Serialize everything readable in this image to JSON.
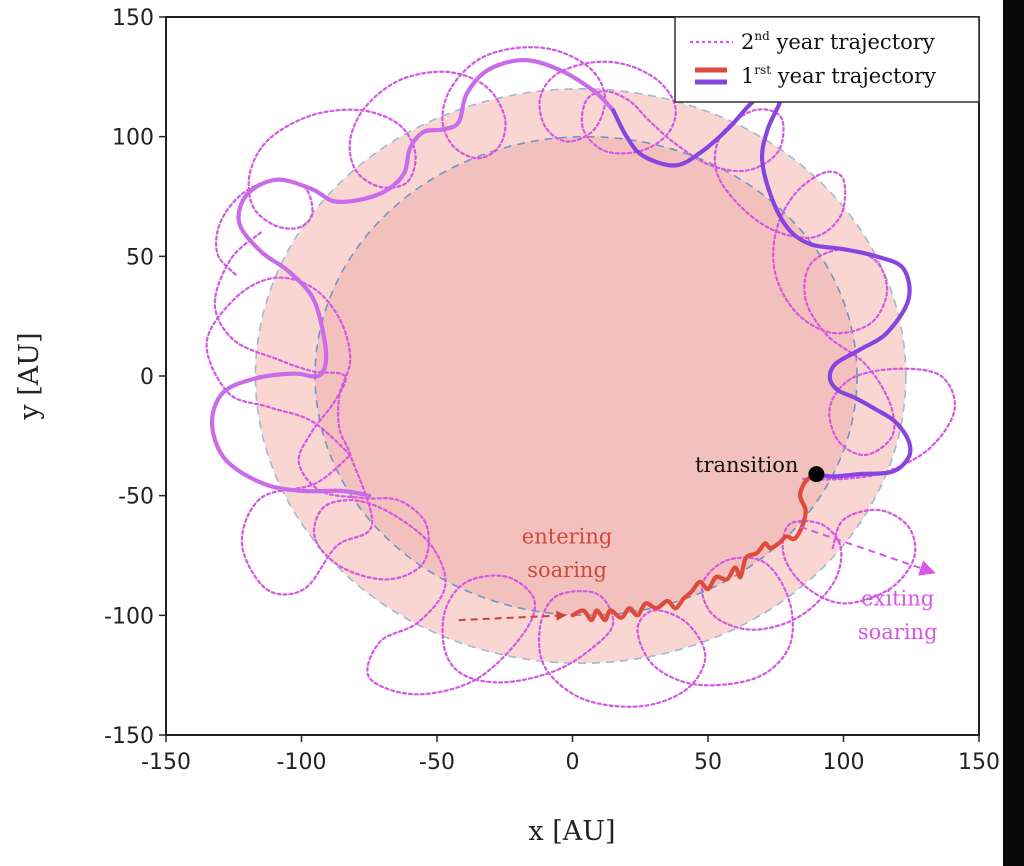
{
  "chart_data": {
    "type": "line",
    "xlabel": "x [AU]",
    "ylabel": "y [AU]",
    "xlim": [
      -150,
      150
    ],
    "ylim": [
      -150,
      150
    ],
    "x_ticks": [
      -150,
      -100,
      -50,
      0,
      50,
      100,
      150
    ],
    "y_ticks": [
      150,
      100,
      50,
      0,
      -50,
      -100,
      -150
    ],
    "x_tick_labels": [
      "-150",
      "-100",
      "-50",
      "0",
      "50",
      "100",
      "150"
    ],
    "y_tick_labels": [
      "150",
      "100",
      "50",
      "0",
      "-50",
      "-100",
      "-150"
    ],
    "grid": false,
    "legend_position": "top-right",
    "legend": {
      "entry2_prefix": "2",
      "entry2_sup": "nd",
      "entry2_text": " year trajectory",
      "entry1_prefix": "1",
      "entry1_sup": "rst",
      "entry1_text": " year trajectory"
    },
    "regions": [
      {
        "shape": "circle",
        "center": [
          3,
          0
        ],
        "radius": 120,
        "fill": "#f9d6d2",
        "edge": "#9dbad6"
      },
      {
        "shape": "circle",
        "center": [
          5,
          0
        ],
        "radius": 100,
        "fill": "#f3c1bd",
        "edge": "#6f96c6"
      }
    ],
    "series": [
      {
        "style": "dotted",
        "color": "#d457e6",
        "points": [
          [
            -82,
            -33
          ],
          [
            -96,
            -19
          ],
          [
            -112,
            -13
          ],
          [
            -127,
            -7
          ],
          [
            -135,
            14
          ],
          [
            -124,
            33
          ],
          [
            -110,
            41
          ],
          [
            -96,
            37
          ],
          [
            -86,
            24
          ],
          [
            -82,
            7
          ],
          [
            -86,
            -8
          ],
          [
            -86,
            -22
          ],
          [
            -82,
            -33
          ],
          [
            -74,
            -62
          ],
          [
            -87,
            -71
          ],
          [
            -99,
            -89
          ],
          [
            -113,
            -89
          ],
          [
            -122,
            -70
          ],
          [
            -115,
            -51
          ],
          [
            -95,
            -45
          ],
          [
            -82,
            -33
          ]
        ]
      },
      {
        "style": "dotted",
        "color": "#d457e6",
        "points": [
          [
            -115,
            60
          ],
          [
            -126,
            49
          ],
          [
            -132,
            30
          ],
          [
            -125,
            15
          ],
          [
            -109,
            7
          ],
          [
            -96,
            2
          ],
          [
            -84,
            0
          ],
          [
            -88,
            -11
          ],
          [
            -96,
            -23
          ],
          [
            -101,
            -36
          ],
          [
            -93,
            -48
          ],
          [
            -77,
            -51
          ],
          [
            -64,
            -52
          ],
          [
            -54,
            -62
          ],
          [
            -55,
            -78
          ],
          [
            -68,
            -85
          ],
          [
            -85,
            -80
          ],
          [
            -95,
            -68
          ],
          [
            -92,
            -55
          ],
          [
            -80,
            -52
          ],
          [
            -66,
            -58
          ],
          [
            -52,
            -71
          ],
          [
            -47,
            -88
          ],
          [
            -57,
            -103
          ],
          [
            -71,
            -111
          ],
          [
            -75,
            -126
          ],
          [
            -58,
            -133
          ],
          [
            -36,
            -127
          ],
          [
            -19,
            -109
          ],
          [
            -14,
            -94
          ],
          [
            -24,
            -84
          ],
          [
            -39,
            -86
          ],
          [
            -47,
            -98
          ],
          [
            -47,
            -115
          ],
          [
            -40,
            -125
          ],
          [
            -25,
            -128
          ],
          [
            -6,
            -123
          ],
          [
            8,
            -113
          ],
          [
            15,
            -103
          ],
          [
            9,
            -91
          ],
          [
            -6,
            -92
          ],
          [
            -12,
            -105
          ],
          [
            -10,
            -122
          ],
          [
            4,
            -135
          ],
          [
            25,
            -138
          ],
          [
            42,
            -131
          ],
          [
            49,
            -117
          ],
          [
            42,
            -103
          ],
          [
            30,
            -98
          ],
          [
            24,
            -106
          ],
          [
            30,
            -121
          ],
          [
            46,
            -129
          ],
          [
            68,
            -126
          ],
          [
            80,
            -113
          ],
          [
            80,
            -94
          ],
          [
            71,
            -78
          ],
          [
            57,
            -77
          ],
          [
            48,
            -87
          ],
          [
            52,
            -100
          ],
          [
            66,
            -106
          ],
          [
            83,
            -101
          ],
          [
            96,
            -87
          ],
          [
            99,
            -72
          ],
          [
            92,
            -62
          ],
          [
            80,
            -62
          ],
          [
            78,
            -75
          ],
          [
            86,
            -88
          ],
          [
            100,
            -95
          ],
          [
            117,
            -89
          ],
          [
            126,
            -76
          ],
          [
            124,
            -63
          ],
          [
            113,
            -56
          ],
          [
            100,
            -60
          ],
          [
            96,
            -72
          ]
        ]
      },
      {
        "style": "dotted",
        "color": "#d457e6",
        "points": [
          [
            85,
            -43
          ],
          [
            100,
            -43
          ],
          [
            116,
            -40
          ],
          [
            132,
            -30
          ],
          [
            141,
            -14
          ],
          [
            136,
            0
          ],
          [
            120,
            3
          ],
          [
            103,
            -1
          ],
          [
            95,
            -13
          ],
          [
            98,
            -27
          ],
          [
            108,
            -33
          ],
          [
            118,
            -25
          ],
          [
            117,
            -11
          ],
          [
            108,
            5
          ],
          [
            94,
            17
          ],
          [
            86,
            32
          ],
          [
            88,
            47
          ],
          [
            100,
            53
          ],
          [
            112,
            48
          ],
          [
            116,
            35
          ],
          [
            110,
            22
          ],
          [
            96,
            18
          ],
          [
            83,
            26
          ],
          [
            75,
            42
          ],
          [
            75,
            60
          ],
          [
            82,
            76
          ],
          [
            93,
            85
          ],
          [
            100,
            82
          ],
          [
            99,
            67
          ],
          [
            89,
            58
          ],
          [
            74,
            61
          ],
          [
            61,
            72
          ],
          [
            53,
            86
          ],
          [
            55,
            101
          ],
          [
            67,
            111
          ],
          [
            77,
            108
          ],
          [
            76,
            94
          ],
          [
            65,
            86
          ],
          [
            51,
            88
          ],
          [
            38,
            97
          ],
          [
            28,
            107
          ],
          [
            21,
            115
          ],
          [
            12,
            119
          ],
          [
            5,
            115
          ],
          [
            4,
            103
          ],
          [
            12,
            94
          ],
          [
            25,
            94
          ],
          [
            35,
            101
          ],
          [
            38,
            112
          ],
          [
            32,
            123
          ],
          [
            20,
            130
          ],
          [
            7,
            131
          ],
          [
            -6,
            126
          ],
          [
            -12,
            116
          ],
          [
            -10,
            104
          ],
          [
            -2,
            98
          ],
          [
            8,
            103
          ],
          [
            12,
            116
          ],
          [
            7,
            128
          ],
          [
            -6,
            136
          ],
          [
            -21,
            137
          ],
          [
            -35,
            132
          ],
          [
            -45,
            120
          ],
          [
            -48,
            107
          ],
          [
            -44,
            96
          ],
          [
            -35,
            91
          ],
          [
            -27,
            96
          ],
          [
            -25,
            108
          ],
          [
            -32,
            121
          ],
          [
            -46,
            127
          ],
          [
            -63,
            124
          ],
          [
            -76,
            113
          ],
          [
            -82,
            99
          ],
          [
            -80,
            86
          ],
          [
            -71,
            79
          ],
          [
            -61,
            81
          ],
          [
            -58,
            93
          ],
          [
            -64,
            105
          ],
          [
            -78,
            111
          ],
          [
            -96,
            109
          ],
          [
            -112,
            99
          ],
          [
            -119,
            85
          ],
          [
            -118,
            71
          ],
          [
            -110,
            63
          ],
          [
            -101,
            62
          ],
          [
            -96,
            68
          ],
          [
            -99,
            79
          ],
          [
            -110,
            82
          ],
          [
            -122,
            76
          ],
          [
            -130,
            64
          ],
          [
            -131,
            51
          ],
          [
            -124,
            42
          ]
        ]
      },
      {
        "style": "solid",
        "color": "#c86ce9",
        "points": [
          [
            -75,
            -50
          ],
          [
            -85,
            -48
          ],
          [
            -100,
            -48
          ],
          [
            -114,
            -45
          ],
          [
            -128,
            -35
          ],
          [
            -133,
            -20
          ],
          [
            -129,
            -7
          ],
          [
            -117,
            -1
          ],
          [
            -103,
            1
          ],
          [
            -94,
            0
          ],
          [
            -91,
            6
          ],
          [
            -92,
            18
          ],
          [
            -96,
            33
          ],
          [
            -105,
            44
          ],
          [
            -115,
            52
          ],
          [
            -123,
            64
          ],
          [
            -120,
            76
          ],
          [
            -109,
            82
          ],
          [
            -96,
            78
          ],
          [
            -88,
            73
          ],
          [
            -77,
            74
          ],
          [
            -68,
            78
          ],
          [
            -62,
            85
          ],
          [
            -60,
            95
          ],
          [
            -55,
            102
          ],
          [
            -48,
            103
          ],
          [
            -42,
            106
          ],
          [
            -39,
            118
          ],
          [
            -31,
            128
          ],
          [
            -18,
            132
          ],
          [
            -5,
            128
          ],
          [
            8,
            119
          ],
          [
            15,
            111
          ]
        ]
      },
      {
        "style": "solid",
        "color": "#8844df",
        "points": [
          [
            15,
            111
          ],
          [
            20,
            100
          ],
          [
            26,
            92
          ],
          [
            38,
            88
          ],
          [
            48,
            94
          ],
          [
            58,
            104
          ],
          [
            66,
            114
          ],
          [
            75,
            122
          ],
          [
            77,
            116
          ],
          [
            72,
            103
          ],
          [
            70,
            90
          ],
          [
            74,
            73
          ],
          [
            80,
            61
          ],
          [
            88,
            55
          ],
          [
            100,
            53
          ],
          [
            112,
            50
          ],
          [
            122,
            45
          ],
          [
            124,
            32
          ],
          [
            116,
            18
          ],
          [
            106,
            11
          ],
          [
            97,
            5
          ],
          [
            95,
            -1
          ],
          [
            98,
            -6
          ],
          [
            104,
            -9
          ],
          [
            112,
            -14
          ],
          [
            119,
            -19
          ],
          [
            124,
            -27
          ],
          [
            124,
            -34
          ],
          [
            118,
            -40
          ],
          [
            106,
            -41
          ],
          [
            96,
            -42
          ],
          [
            90,
            -41
          ]
        ]
      },
      {
        "style": "solid",
        "color": "#de4a3c",
        "points": [
          [
            0,
            -100
          ],
          [
            4,
            -98
          ],
          [
            7,
            -102
          ],
          [
            9,
            -98
          ],
          [
            12,
            -102
          ],
          [
            14,
            -98
          ],
          [
            18,
            -101
          ],
          [
            21,
            -97
          ],
          [
            24,
            -100
          ],
          [
            27,
            -95
          ],
          [
            31,
            -97
          ],
          [
            35,
            -94
          ],
          [
            38,
            -97
          ],
          [
            41,
            -93
          ],
          [
            44,
            -90
          ],
          [
            47,
            -86
          ],
          [
            50,
            -89
          ],
          [
            53,
            -84
          ],
          [
            57,
            -85
          ],
          [
            60,
            -80
          ],
          [
            62,
            -84
          ],
          [
            64,
            -76
          ],
          [
            68,
            -74
          ],
          [
            71,
            -70
          ],
          [
            73,
            -72
          ],
          [
            76,
            -70
          ],
          [
            79,
            -67
          ],
          [
            82,
            -68
          ],
          [
            85,
            -62
          ],
          [
            86,
            -56
          ],
          [
            84,
            -50
          ],
          [
            86,
            -44
          ],
          [
            90,
            -41
          ]
        ]
      },
      {
        "style": "dashed-arrow",
        "color": "#d0413a",
        "points": [
          [
            -42,
            -102
          ],
          [
            -3,
            -100
          ]
        ]
      },
      {
        "style": "dashed-arrow",
        "color": "#d457e6",
        "points": [
          [
            84,
            -63
          ],
          [
            133,
            -82
          ]
        ]
      }
    ],
    "markers": [
      {
        "x": 90,
        "y": -41,
        "color": "#000000",
        "label": "transition"
      }
    ],
    "annotations": [
      {
        "text_line1": "entering",
        "text_line2": "soaring",
        "x": -2,
        "y_line1": -67,
        "y_line2": -81,
        "color": "#d0473d"
      },
      {
        "text_line1": "exiting",
        "text_line2": "soaring",
        "x": 120,
        "y_line1": -93,
        "y_line2": -107,
        "color": "#d457e6"
      }
    ]
  }
}
